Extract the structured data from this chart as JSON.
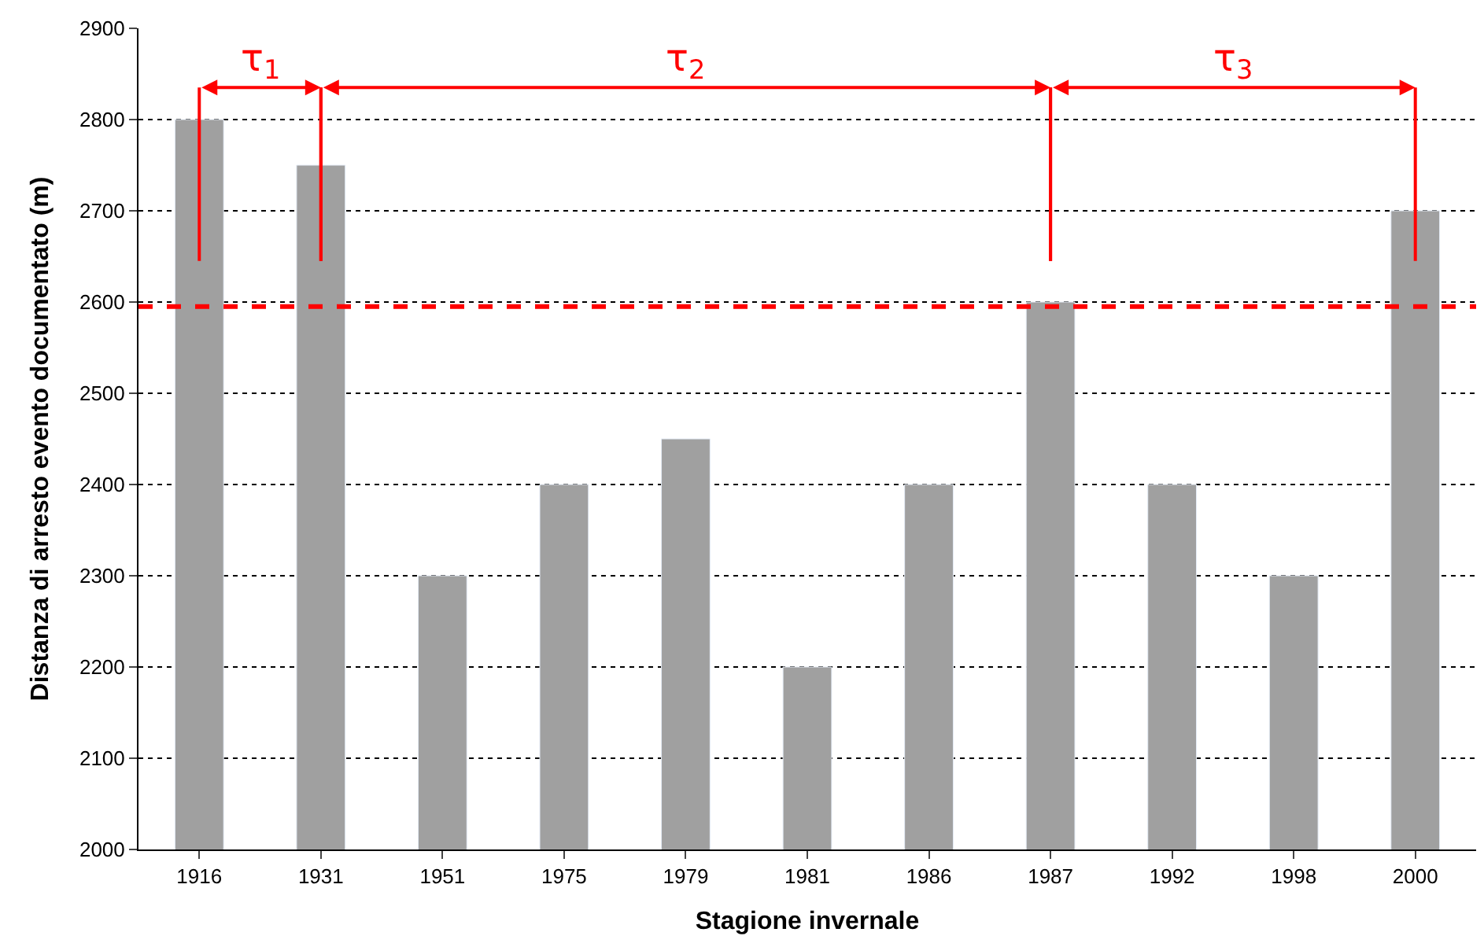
{
  "chart_data": {
    "type": "bar",
    "xlabel": "Stagione invernale",
    "ylabel": "Distanza di arresto evento documentato (m)",
    "categories": [
      "1916",
      "1931",
      "1951",
      "1975",
      "1979",
      "1981",
      "1986",
      "1987",
      "1992",
      "1998",
      "2000"
    ],
    "values": [
      2800,
      2750,
      2300,
      2400,
      2450,
      2200,
      2400,
      2600,
      2400,
      2300,
      2700
    ],
    "color": "#a0a0a0",
    "ylim": [
      2000,
      2900
    ],
    "yticks": [
      2000,
      2100,
      2200,
      2300,
      2400,
      2500,
      2600,
      2700,
      2800,
      2900
    ],
    "grid": "y",
    "ref_lines": [
      {
        "axis": "y",
        "value": 2595,
        "color": "#ff0000",
        "line_style": "dashed"
      }
    ],
    "annotations": [
      "τ$_{1}$",
      "τ$_{2}$",
      "τ$_{3}$"
    ]
  }
}
